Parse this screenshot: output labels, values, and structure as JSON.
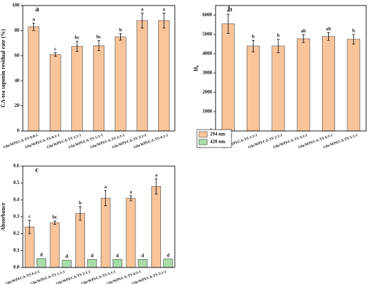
{
  "chart_data": [
    {
      "type": "bar",
      "panel": "a",
      "ylabel": "CA-tea saponin residual rate (%)",
      "categories": [
        "Glu/WPI/CA-TS 0:0:1",
        "Glu/WPI/CA-TS 0:1:1",
        "Glu/WPI/CA-TS 1:1:1",
        "Glu/WPI/CA-TS 1:1:1",
        "Glu/WPI/CA-TS 2:1:1",
        "Glu/WPI/CA-TS 3:1:1",
        "Glu/WPI/CA-TS 4:1:1"
      ],
      "series": [
        {
          "color": "#f9c49a",
          "values": [
            83,
            61,
            67.5,
            68,
            75,
            88,
            88
          ],
          "errors": [
            3,
            1.5,
            4,
            4,
            2.5,
            6,
            6
          ],
          "letters": [
            "a",
            "c",
            "bc",
            "bc",
            "b",
            "a",
            "a"
          ]
        }
      ],
      "ylim": [
        0,
        100
      ],
      "yticks": [
        0,
        20,
        40,
        60,
        80,
        100
      ]
    },
    {
      "type": "bar",
      "panel": "b",
      "ylabel": "H₀",
      "categories": [
        "Glu/WPI/CA-TS 0:1:1",
        "Glu/WPI/CA-TS 1:1:1",
        "Glu/WPI/CA-TS 2:1:1",
        "Glu/WPI/CA-TS 3:1:1",
        "Glu/WPI/CA-TS 4:1:1",
        "Glu/WPI/CA-TS 5:1:1"
      ],
      "series": [
        {
          "color": "#f9c49a",
          "values": [
            5550,
            4400,
            4400,
            4780,
            4900,
            4750
          ],
          "errors": [
            500,
            300,
            350,
            200,
            200,
            250
          ],
          "letters": [
            "a",
            "b",
            "b",
            "ab",
            "ab",
            "b"
          ]
        }
      ],
      "ylim": [
        0,
        6500
      ],
      "yticks": [
        0,
        1000,
        2000,
        3000,
        4000,
        5000,
        6000
      ]
    },
    {
      "type": "bar",
      "panel": "c",
      "ylabel": "Absorbance",
      "categories": [
        "Glu/WPI/CA-TS 0:1:1",
        "Glu/WPI/CA-TS 1:1:1",
        "Glu/WPI/CA-TS 2:1:1",
        "Glu/WPI/CA-TS 3:1:1",
        "Glu/WPI/CA-TS 4:1:1",
        "Glu/WPI/CA-TS 5:1:1"
      ],
      "series": [
        {
          "name": "294 nm",
          "color": "#f9c49a",
          "values": [
            0.24,
            0.265,
            0.32,
            0.41,
            0.41,
            0.48
          ],
          "errors": [
            0.04,
            0.01,
            0.04,
            0.045,
            0.015,
            0.045
          ],
          "letters": [
            "c",
            "bc",
            "b",
            "a",
            "a",
            "a"
          ]
        },
        {
          "name": "420 nm",
          "color": "#a8dca8",
          "values": [
            0.053,
            0.043,
            0.048,
            0.048,
            0.048,
            0.05
          ],
          "letters": [
            "d",
            "d",
            "d",
            "d",
            "d",
            "d"
          ]
        }
      ],
      "ylim": [
        0,
        0.6
      ],
      "yticks": [
        {
          "value": 0,
          "label": "0.0"
        },
        0.1,
        0.2,
        0.3,
        0.4,
        0.5,
        0.6
      ]
    }
  ]
}
